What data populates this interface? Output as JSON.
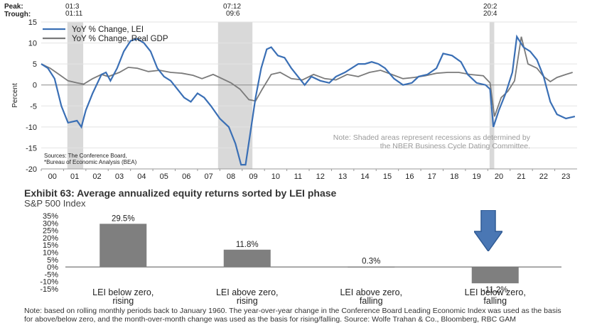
{
  "chart_data": [
    {
      "type": "line",
      "title": "",
      "xlabel": "",
      "ylabel": "Percent",
      "ylim": [
        -20,
        15
      ],
      "yticks": [
        15,
        10,
        5,
        0,
        -5,
        -10,
        -15,
        -20
      ],
      "x_tick_labels": [
        "00",
        "01",
        "02",
        "03",
        "04",
        "05",
        "06",
        "07",
        "08",
        "09",
        "10",
        "11",
        "12",
        "13",
        "14",
        "15",
        "16",
        "17",
        "18",
        "19",
        "20",
        "21",
        "22",
        "23"
      ],
      "x_range": [
        2000.0,
        2024.0
      ],
      "grid": true,
      "legend": "top-left",
      "recessions": [
        {
          "peak": "01:3",
          "trough": "01:11",
          "start": 2001.17,
          "end": 2001.88
        },
        {
          "peak": "07:12",
          "trough": "09:6",
          "start": 2007.92,
          "end": 2009.46
        },
        {
          "peak": "20:2",
          "trough": "20:4",
          "start": 2020.08,
          "end": 2020.29
        }
      ],
      "peak_label": "Peak:",
      "trough_label": "Trough:",
      "series": [
        {
          "name": "YoY % Change, LEI",
          "color": "#3a6fb5",
          "points": [
            [
              2000.0,
              5
            ],
            [
              2000.3,
              4
            ],
            [
              2000.6,
              1.5
            ],
            [
              2000.9,
              -5
            ],
            [
              2001.2,
              -9
            ],
            [
              2001.6,
              -8.5
            ],
            [
              2001.8,
              -10
            ],
            [
              2002.0,
              -6
            ],
            [
              2002.3,
              -2
            ],
            [
              2002.7,
              2.5
            ],
            [
              2002.9,
              3
            ],
            [
              2003.1,
              1
            ],
            [
              2003.4,
              4
            ],
            [
              2003.7,
              8
            ],
            [
              2004.0,
              10.5
            ],
            [
              2004.3,
              11
            ],
            [
              2004.6,
              10
            ],
            [
              2004.9,
              8
            ],
            [
              2005.2,
              4
            ],
            [
              2005.5,
              2
            ],
            [
              2005.8,
              1
            ],
            [
              2006.1,
              -1
            ],
            [
              2006.4,
              -3
            ],
            [
              2006.7,
              -4
            ],
            [
              2007.0,
              -2
            ],
            [
              2007.3,
              -3
            ],
            [
              2007.6,
              -5
            ],
            [
              2008.0,
              -8
            ],
            [
              2008.4,
              -10
            ],
            [
              2008.7,
              -14
            ],
            [
              2008.95,
              -19
            ],
            [
              2009.15,
              -19
            ],
            [
              2009.35,
              -12
            ],
            [
              2009.6,
              -3
            ],
            [
              2009.85,
              4
            ],
            [
              2010.1,
              8.5
            ],
            [
              2010.3,
              9
            ],
            [
              2010.6,
              7
            ],
            [
              2010.9,
              6.5
            ],
            [
              2011.2,
              4
            ],
            [
              2011.5,
              2
            ],
            [
              2011.8,
              0
            ],
            [
              2012.1,
              2
            ],
            [
              2012.5,
              1
            ],
            [
              2012.9,
              0.5
            ],
            [
              2013.2,
              2
            ],
            [
              2013.6,
              3
            ],
            [
              2013.9,
              4
            ],
            [
              2014.2,
              5
            ],
            [
              2014.5,
              5
            ],
            [
              2014.8,
              5.5
            ],
            [
              2015.1,
              5
            ],
            [
              2015.4,
              4
            ],
            [
              2015.8,
              1.5
            ],
            [
              2016.2,
              0
            ],
            [
              2016.6,
              0.5
            ],
            [
              2016.9,
              2
            ],
            [
              2017.3,
              2.5
            ],
            [
              2017.7,
              4
            ],
            [
              2018.0,
              7.5
            ],
            [
              2018.4,
              7
            ],
            [
              2018.8,
              5.5
            ],
            [
              2019.1,
              2.5
            ],
            [
              2019.5,
              0.5
            ],
            [
              2019.9,
              0
            ],
            [
              2020.1,
              -1
            ],
            [
              2020.25,
              -10
            ],
            [
              2020.5,
              -6
            ],
            [
              2020.8,
              -2
            ],
            [
              2021.1,
              3
            ],
            [
              2021.3,
              11.5
            ],
            [
              2021.6,
              9
            ],
            [
              2021.9,
              8
            ],
            [
              2022.2,
              6
            ],
            [
              2022.5,
              2
            ],
            [
              2022.8,
              -4
            ],
            [
              2023.1,
              -7
            ],
            [
              2023.5,
              -8
            ],
            [
              2023.9,
              -7.5
            ]
          ]
        },
        {
          "name": "YoY % Change, Real GDP",
          "color": "#7a7a7a",
          "points": [
            [
              2000.0,
              5
            ],
            [
              2000.4,
              4
            ],
            [
              2000.8,
              2.5
            ],
            [
              2001.2,
              1
            ],
            [
              2001.6,
              0.5
            ],
            [
              2001.9,
              0.2
            ],
            [
              2002.3,
              1.5
            ],
            [
              2002.7,
              2.5
            ],
            [
              2003.0,
              2
            ],
            [
              2003.5,
              3
            ],
            [
              2003.9,
              4.2
            ],
            [
              2004.3,
              4
            ],
            [
              2004.8,
              3.2
            ],
            [
              2005.3,
              3.5
            ],
            [
              2005.8,
              3
            ],
            [
              2006.3,
              2.8
            ],
            [
              2006.8,
              2.3
            ],
            [
              2007.2,
              1.5
            ],
            [
              2007.7,
              2.5
            ],
            [
              2008.1,
              1.5
            ],
            [
              2008.5,
              0.5
            ],
            [
              2008.9,
              -1
            ],
            [
              2009.3,
              -3.5
            ],
            [
              2009.6,
              -3.8
            ],
            [
              2009.9,
              -1
            ],
            [
              2010.3,
              2.5
            ],
            [
              2010.7,
              3
            ],
            [
              2011.2,
              1.5
            ],
            [
              2011.7,
              1.2
            ],
            [
              2012.2,
              2.5
            ],
            [
              2012.7,
              1.5
            ],
            [
              2013.2,
              1.2
            ],
            [
              2013.7,
              2.5
            ],
            [
              2014.2,
              2
            ],
            [
              2014.7,
              3
            ],
            [
              2015.2,
              3.5
            ],
            [
              2015.7,
              2.5
            ],
            [
              2016.2,
              1.5
            ],
            [
              2016.7,
              1.8
            ],
            [
              2017.2,
              2.2
            ],
            [
              2017.7,
              2.8
            ],
            [
              2018.2,
              3
            ],
            [
              2018.7,
              3
            ],
            [
              2019.2,
              2.5
            ],
            [
              2019.8,
              2.2
            ],
            [
              2020.1,
              0.5
            ],
            [
              2020.3,
              -7.5
            ],
            [
              2020.6,
              -3
            ],
            [
              2020.9,
              -1.5
            ],
            [
              2021.2,
              1
            ],
            [
              2021.5,
              11.5
            ],
            [
              2021.8,
              5
            ],
            [
              2022.2,
              4
            ],
            [
              2022.5,
              2
            ],
            [
              2022.8,
              0.8
            ],
            [
              2023.1,
              1.8
            ],
            [
              2023.5,
              2.5
            ],
            [
              2023.8,
              3
            ]
          ]
        }
      ],
      "sources": [
        "Sources: The Conference Board,",
        "*Bureau of Economic Analysis (BEA)"
      ],
      "note": [
        "Note: Shaded areas represent recessions as determined by",
        "the NBER Business Cycle Dating Committee."
      ]
    },
    {
      "type": "bar",
      "title": "Exhibit 63: Average annualized equity returns sorted by LEI phase",
      "subtitle": "S&P 500 Index",
      "categories": [
        [
          "LEI below  zero,",
          "rising"
        ],
        [
          "LEI above  zero,",
          "rising"
        ],
        [
          "LEI above  zero,",
          "falling"
        ],
        [
          "LEI below  zero,",
          "falling"
        ]
      ],
      "values": [
        29.5,
        11.8,
        0.3,
        -11.2
      ],
      "data_labels": [
        "29.5%",
        "11.8%",
        "0.3%",
        "-11.2%"
      ],
      "ylim": [
        -15,
        35
      ],
      "yticks": [
        35,
        30,
        25,
        20,
        15,
        10,
        5,
        0,
        -5,
        -10,
        -15
      ],
      "ytick_labels": [
        "35%",
        "30%",
        "25%",
        "20%",
        "15%",
        "10%",
        "5%",
        "0%",
        "-5%",
        "-10%",
        "-15%"
      ],
      "bar_color": "#7f7f7f",
      "highlight_arrow_color": "#4a77b4",
      "note": "Note: based on rolling monthly periods back to January 1960. The year-over-year change in the Conference Board Leading Economic Index was used as the basis for above/below zero, and the month-over-month change was used as the basis for rising/falling. Source: Wolfe Trahan & Co., Bloomberg, RBC GAM"
    }
  ]
}
